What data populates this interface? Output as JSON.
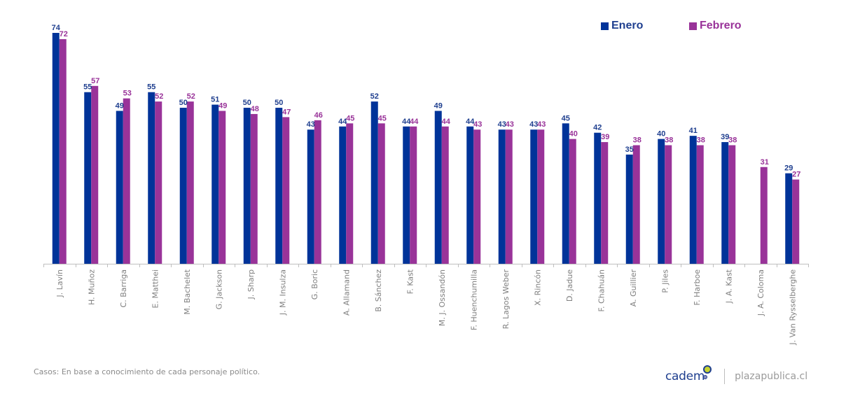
{
  "chart_data": {
    "type": "bar",
    "title": "",
    "xlabel": "",
    "ylabel": "",
    "ylim": [
      0,
      80
    ],
    "grid": false,
    "legend_position": "top-right",
    "categories": [
      "J. Lavín",
      "H. Muñoz",
      "C. Barriga",
      "E. Matthei",
      "M. Bachelet",
      "G. Jackson",
      "J. Sharp",
      "J. M. Insulza",
      "G. Boric",
      "A. Allamand",
      "B. Sánchez",
      "F. Kast",
      "M. J. Ossandón",
      "F. Huenchumilla",
      "R. Lagos Weber",
      "X. Rincón",
      "D. Jadue",
      "F. Chahuán",
      "A. Guillier",
      "P. Jiles",
      "F. Harboe",
      "J. A. Kast",
      "J. A. Coloma",
      "J. Van Rysselberghe"
    ],
    "series": [
      {
        "name": "Enero",
        "color": "#003399",
        "values": [
          74,
          55,
          49,
          55,
          50,
          51,
          50,
          50,
          43,
          44,
          52,
          44,
          49,
          44,
          43,
          43,
          45,
          42,
          35,
          40,
          41,
          39,
          null,
          29
        ]
      },
      {
        "name": "Febrero",
        "color": "#993399",
        "values": [
          72,
          57,
          53,
          52,
          52,
          49,
          48,
          47,
          46,
          45,
          45,
          44,
          44,
          43,
          43,
          43,
          40,
          39,
          38,
          38,
          38,
          38,
          31,
          27
        ]
      }
    ],
    "label_colors": {
      "Enero": "#1f3f8f",
      "Febrero": "#993399"
    }
  },
  "legend": {
    "items": [
      {
        "label": "Enero",
        "color": "#003399"
      },
      {
        "label": "Febrero",
        "color": "#993399"
      }
    ]
  },
  "footer": {
    "note": "Casos: En base a conocimiento de cada personaje político.",
    "brand": "cadem",
    "site": "plazapublica.cl"
  },
  "colors": {
    "axis": "#bfbfbf",
    "tick_text": "#7f7f7f"
  }
}
